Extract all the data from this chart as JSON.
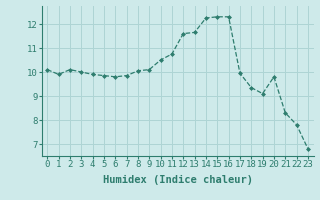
{
  "x": [
    0,
    1,
    2,
    3,
    4,
    5,
    6,
    7,
    8,
    9,
    10,
    11,
    12,
    13,
    14,
    15,
    16,
    17,
    18,
    19,
    20,
    21,
    22,
    23
  ],
  "y": [
    10.1,
    9.9,
    10.1,
    10.0,
    9.9,
    9.85,
    9.8,
    9.85,
    10.05,
    10.1,
    10.5,
    10.75,
    11.6,
    11.65,
    12.25,
    12.3,
    12.3,
    9.95,
    9.35,
    9.1,
    9.8,
    8.3,
    7.8,
    6.8
  ],
  "line_color": "#2e7d6e",
  "marker": "D",
  "marker_size": 2,
  "bg_color": "#ceeaea",
  "grid_color": "#aed4d4",
  "xlabel": "Humidex (Indice chaleur)",
  "ylim": [
    6.5,
    12.75
  ],
  "xlim": [
    -0.5,
    23.5
  ],
  "yticks": [
    7,
    8,
    9,
    10,
    11,
    12
  ],
  "xticks": [
    0,
    1,
    2,
    3,
    4,
    5,
    6,
    7,
    8,
    9,
    10,
    11,
    12,
    13,
    14,
    15,
    16,
    17,
    18,
    19,
    20,
    21,
    22,
    23
  ],
  "tick_fontsize": 6.5,
  "xlabel_fontsize": 7.5
}
